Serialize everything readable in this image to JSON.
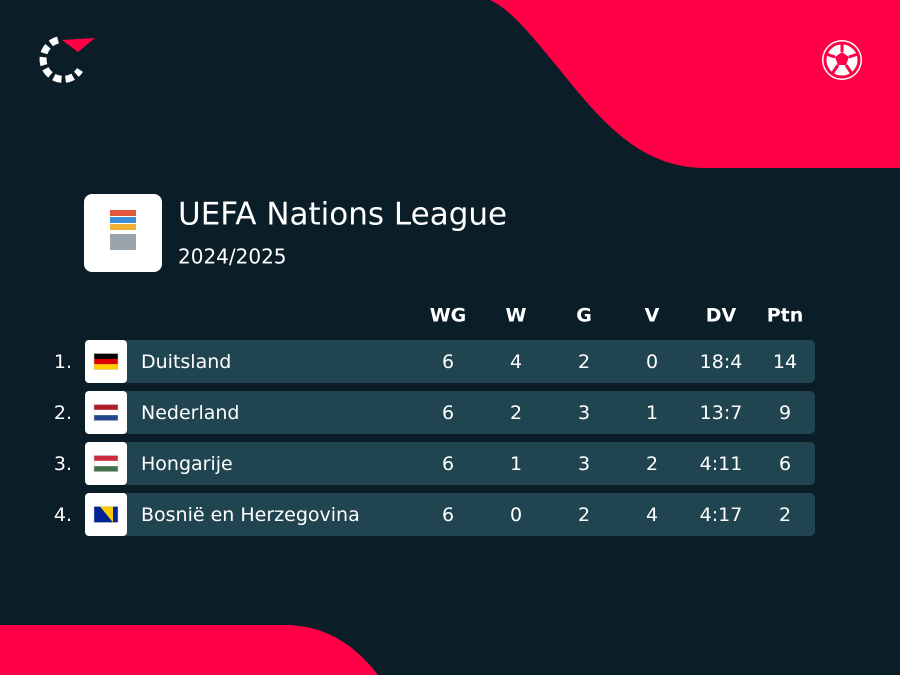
{
  "header": {
    "title": "UEFA Nations League",
    "subtitle": "2024/2025"
  },
  "table": {
    "columns": [
      "WG",
      "W",
      "G",
      "V",
      "DV",
      "Ptn"
    ],
    "rows": [
      {
        "rank": "1.",
        "team": "Duitsland",
        "flag": "de",
        "cells": [
          6,
          4,
          2,
          0,
          "18:4",
          14
        ]
      },
      {
        "rank": "2.",
        "team": "Nederland",
        "flag": "nl",
        "cells": [
          6,
          2,
          3,
          1,
          "13:7",
          9
        ]
      },
      {
        "rank": "3.",
        "team": "Hongarije",
        "flag": "hu",
        "cells": [
          6,
          1,
          3,
          2,
          "4:11",
          6
        ]
      },
      {
        "rank": "4.",
        "team": "Bosnië en Herzegovina",
        "flag": "ba",
        "cells": [
          6,
          0,
          2,
          4,
          "4:17",
          2
        ]
      }
    ]
  }
}
